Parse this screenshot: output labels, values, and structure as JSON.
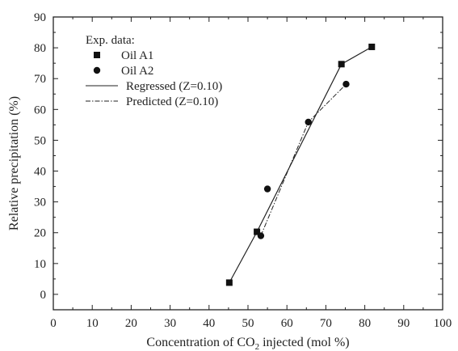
{
  "chart_data": {
    "type": "scatter",
    "title": "",
    "xlabel": {
      "before": "Concentration of CO",
      "sub": "2",
      "after": " injected (mol %)"
    },
    "ylabel": "Relative precipitation (%)",
    "xlim": [
      0,
      100
    ],
    "ylim": [
      -5,
      90
    ],
    "xticks": [
      0,
      10,
      20,
      30,
      40,
      50,
      60,
      70,
      80,
      90,
      100
    ],
    "yticks": [
      0,
      10,
      20,
      30,
      40,
      50,
      60,
      70,
      80,
      90
    ],
    "grid": false,
    "legend": {
      "placement": "top-left",
      "title": "Exp. data:",
      "entries": [
        "Oil A1",
        "Oil A2",
        "Regressed (Z=0.10)",
        "Predicted (Z=0.10)"
      ]
    },
    "series": [
      {
        "name": "Oil A1",
        "kind": "scatter",
        "marker": "square",
        "points": [
          [
            45.2,
            3.8
          ],
          [
            52.3,
            20.3
          ],
          [
            74.0,
            74.7
          ],
          [
            81.8,
            80.3
          ]
        ]
      },
      {
        "name": "Oil A2",
        "kind": "scatter",
        "marker": "circle",
        "points": [
          [
            53.3,
            19.0
          ],
          [
            55.0,
            34.2
          ],
          [
            65.5,
            55.9
          ],
          [
            75.2,
            68.2
          ]
        ]
      },
      {
        "name": "Regressed (Z=0.10)",
        "kind": "line",
        "style": "solid",
        "points": [
          [
            45.2,
            3.8
          ],
          [
            52.3,
            20.3
          ],
          [
            74.0,
            74.7
          ],
          [
            81.8,
            80.3
          ]
        ]
      },
      {
        "name": "Predicted (Z=0.10)",
        "kind": "line",
        "style": "dashdot",
        "points": [
          [
            53.3,
            19.0
          ],
          [
            65.5,
            55.9
          ],
          [
            75.2,
            68.2
          ]
        ]
      }
    ]
  }
}
